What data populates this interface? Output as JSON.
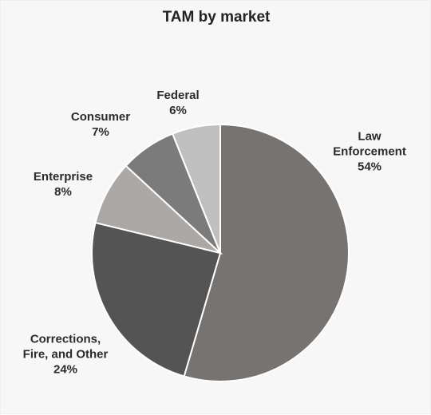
{
  "chart_data": {
    "type": "pie",
    "title": "TAM by market",
    "slices": [
      {
        "label_lines": [
          "Law",
          "Enforcement"
        ],
        "pct_label": "54%",
        "value": 54,
        "color": "#767371"
      },
      {
        "label_lines": [
          "Corrections,",
          "Fire, and Other"
        ],
        "pct_label": "24%",
        "value": 24,
        "color": "#545454"
      },
      {
        "label_lines": [
          "Enterprise"
        ],
        "pct_label": "8%",
        "value": 8,
        "color": "#aba8a6"
      },
      {
        "label_lines": [
          "Consumer"
        ],
        "pct_label": "7%",
        "value": 7,
        "color": "#7b7b7b"
      },
      {
        "label_lines": [
          "Federal"
        ],
        "pct_label": "6%",
        "value": 6,
        "color": "#bfbfbf"
      }
    ],
    "start_angle_deg": 0,
    "direction": "clockwise"
  }
}
